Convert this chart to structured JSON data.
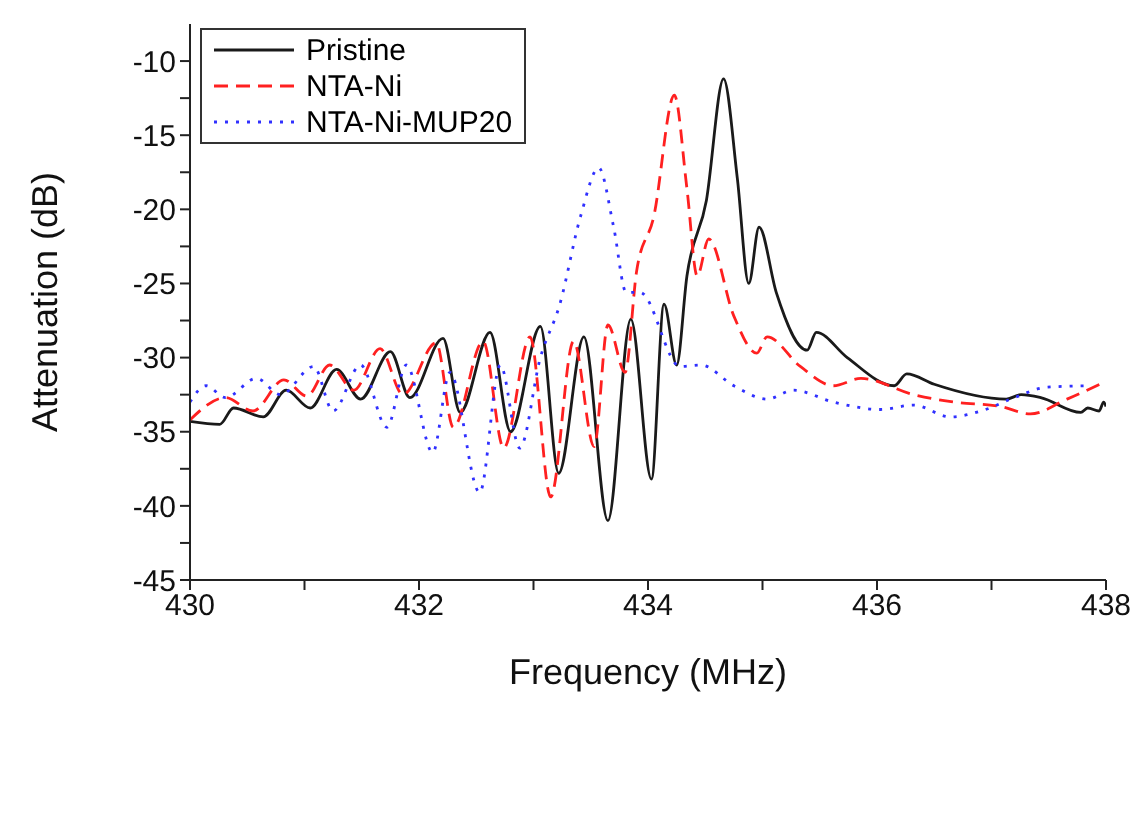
{
  "chart_data": {
    "type": "line",
    "xlabel": "Frequency (MHz)",
    "ylabel": "Attenuation (dB)",
    "xlim": [
      430,
      438
    ],
    "xticks": [
      430,
      {
        "value": 431,
        "label": null
      },
      432,
      {
        "value": 433,
        "label": null
      },
      434,
      {
        "value": 435,
        "label": null
      },
      436,
      {
        "value": 437,
        "label": null
      },
      438
    ],
    "ylim": [
      -45,
      -7.5
    ],
    "yticks": [
      -45,
      {
        "value": -42.5,
        "label": null
      },
      -40,
      {
        "value": -37.5,
        "label": null
      },
      -35,
      {
        "value": -32.5,
        "label": null
      },
      -30,
      {
        "value": -27.5,
        "label": null
      },
      -25,
      {
        "value": -22.5,
        "label": null
      },
      -20,
      {
        "value": -17.5,
        "label": null
      },
      -15,
      {
        "value": -12.5,
        "label": null
      },
      -10
    ],
    "grid": false,
    "legend": "top left",
    "marker": "none",
    "series": [
      {
        "name": "Pristine",
        "color": "#1a1a1a",
        "line_style": "solid",
        "x": [
          430,
          430.26,
          430.38,
          430.64,
          430.84,
          431.05,
          431.28,
          431.49,
          431.75,
          431.92,
          432.21,
          432.36,
          432.62,
          432.8,
          433.06,
          433.22,
          433.44,
          433.65,
          433.85,
          434.03,
          434.14,
          434.25,
          434.34,
          434.51,
          434.66,
          434.78,
          434.88,
          434.97,
          435.12,
          435.39,
          435.47,
          435.74,
          436.15,
          436.26,
          436.5,
          437.13,
          437.26,
          437.43,
          437.78,
          437.84,
          437.94,
          437.98,
          438
        ],
        "values": [
          -34.3,
          -34.5,
          -33.4,
          -34,
          -32.2,
          -33.4,
          -30.8,
          -32.8,
          -29.6,
          -32.7,
          -28.7,
          -33.7,
          -28.3,
          -35,
          -27.9,
          -37.8,
          -28.6,
          -41,
          -27.4,
          -38.2,
          -26.4,
          -30.5,
          -24.5,
          -19.4,
          -11.2,
          -17.9,
          -25,
          -21.2,
          -25.6,
          -29.5,
          -28.3,
          -30,
          -31.9,
          -31.1,
          -31.8,
          -32.8,
          -32.5,
          -32.7,
          -33.7,
          -33.4,
          -33.6,
          -33,
          -33.3
        ]
      },
      {
        "name": "NTA-Ni",
        "color": "#ff2020",
        "line_style": "dashed",
        "x": [
          430,
          430.31,
          430.55,
          430.82,
          431.02,
          431.22,
          431.43,
          431.66,
          431.86,
          432.15,
          432.3,
          432.56,
          432.74,
          432.97,
          433.15,
          433.35,
          433.53,
          433.65,
          433.8,
          433.9,
          434.05,
          434.23,
          434.34,
          434.43,
          434.53,
          434.75,
          434.95,
          435.04,
          435.33,
          435.62,
          435.86,
          436.32,
          436.67,
          437.08,
          437.34,
          437.66,
          438
        ],
        "values": [
          -34.2,
          -32.7,
          -33.6,
          -31.5,
          -32.6,
          -30.5,
          -32.2,
          -29.4,
          -32.5,
          -29,
          -34.7,
          -28.9,
          -36.1,
          -28.6,
          -39.4,
          -28.9,
          -36,
          -27.8,
          -31,
          -24.2,
          -20.5,
          -12.3,
          -18.6,
          -24.5,
          -22,
          -27.2,
          -29.7,
          -28.6,
          -30.6,
          -31.9,
          -31.4,
          -32.5,
          -33,
          -33.3,
          -33.8,
          -32.8,
          -31.6
        ]
      },
      {
        "name": "NTA-Ni-MUP20",
        "color": "#3030ff",
        "line_style": "dotted",
        "x": [
          430,
          430.14,
          430.31,
          430.58,
          430.79,
          431.08,
          431.25,
          431.49,
          431.72,
          431.89,
          432.12,
          432.27,
          432.53,
          432.71,
          432.88,
          433.06,
          433.23,
          433.41,
          433.57,
          433.7,
          433.81,
          433.93,
          434.28,
          434.46,
          434.75,
          435.04,
          435.27,
          435.62,
          436.03,
          436.32,
          436.64,
          436.91,
          437.2,
          437.48,
          437.83
        ],
        "values": [
          -33,
          -31.9,
          -32.7,
          -31.4,
          -32.5,
          -30.6,
          -33.6,
          -30.5,
          -34.7,
          -30.5,
          -36.4,
          -31,
          -39.1,
          -30.5,
          -36.1,
          -30,
          -26.4,
          -20.5,
          -17.2,
          -21.2,
          -25.6,
          -25.6,
          -30.6,
          -30.5,
          -31.9,
          -32.8,
          -32.2,
          -33,
          -33.5,
          -33.2,
          -34,
          -33.6,
          -32.7,
          -32,
          -31.9
        ]
      }
    ]
  }
}
